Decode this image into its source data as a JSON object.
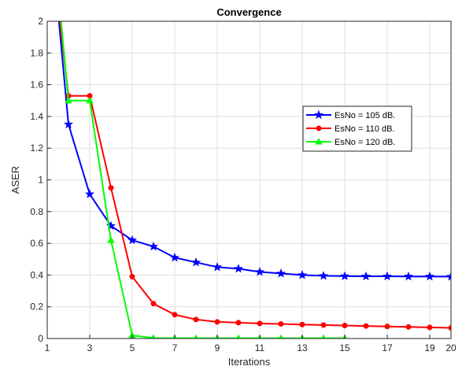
{
  "chart_data": {
    "type": "line",
    "title": "Convergence",
    "xlabel": "Iterations",
    "ylabel": "ASER",
    "xlim": [
      1,
      20
    ],
    "ylim": [
      0,
      2
    ],
    "xticks": [
      1,
      3,
      5,
      7,
      9,
      11,
      13,
      15,
      17,
      19,
      20
    ],
    "yticks": [
      0,
      0.2,
      0.4,
      0.6,
      0.8,
      1,
      1.2,
      1.4,
      1.6,
      1.8,
      2
    ],
    "grid": true,
    "legend_position": "top-right",
    "series": [
      {
        "name": "EsNo = 105 dB.",
        "color": "#0000ff",
        "marker": "star",
        "x": [
          1.55,
          2,
          3,
          4,
          5,
          6,
          7,
          8,
          9,
          10,
          11,
          12,
          13,
          14,
          15,
          16,
          17,
          18,
          19,
          20
        ],
        "y": [
          2.0,
          1.35,
          0.91,
          0.71,
          0.62,
          0.58,
          0.51,
          0.48,
          0.45,
          0.44,
          0.42,
          0.41,
          0.4,
          0.395,
          0.393,
          0.392,
          0.392,
          0.391,
          0.391,
          0.39
        ]
      },
      {
        "name": "EsNo = 110 dB.",
        "color": "#ff0000",
        "marker": "circle",
        "x": [
          1.6,
          2,
          3,
          4,
          5,
          6,
          7,
          8,
          9,
          10,
          11,
          12,
          13,
          14,
          15,
          16,
          17,
          18,
          19,
          20
        ],
        "y": [
          2.0,
          1.53,
          1.53,
          0.95,
          0.39,
          0.22,
          0.15,
          0.12,
          0.105,
          0.1,
          0.095,
          0.092,
          0.088,
          0.085,
          0.082,
          0.079,
          0.076,
          0.073,
          0.07,
          0.067
        ]
      },
      {
        "name": "EsNo = 120 dB.",
        "color": "#00ff00",
        "marker": "triangle",
        "x": [
          1.65,
          2,
          3,
          4,
          5,
          6,
          7,
          8,
          9,
          10,
          11,
          12,
          13,
          14,
          15
        ],
        "y": [
          2.0,
          1.5,
          1.5,
          0.62,
          0.02,
          0.003,
          0.002,
          0.002,
          0.002,
          0.002,
          0.002,
          0.002,
          0.002,
          0.002,
          0.002
        ]
      }
    ]
  }
}
